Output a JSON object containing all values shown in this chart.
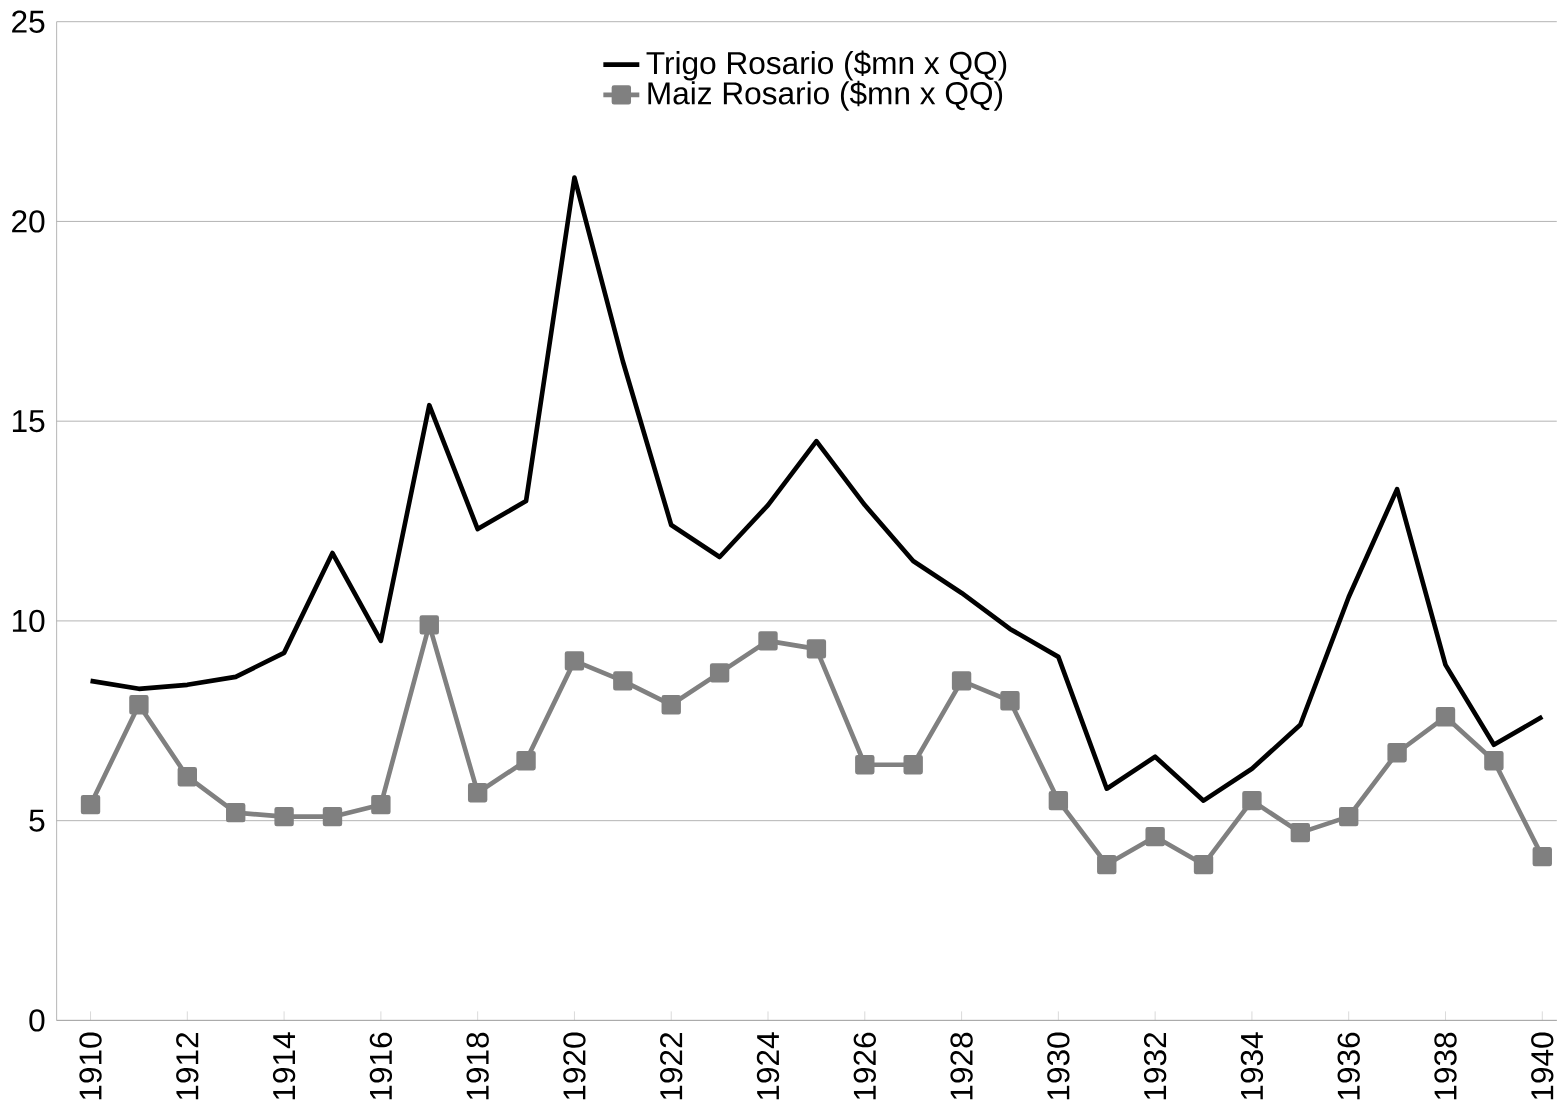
{
  "chart_data": {
    "type": "line",
    "categories": [
      "1910",
      null,
      "1912",
      null,
      "1914",
      null,
      "1916",
      null,
      "1918",
      null,
      "1920",
      null,
      "1922",
      null,
      "1924",
      null,
      "1926",
      null,
      "1928",
      null,
      "1930",
      null,
      "1932",
      null,
      "1934",
      null,
      "1936",
      null,
      "1938",
      null,
      "1940"
    ],
    "series": [
      {
        "name": "Trigo Rosario ($mn x QQ)",
        "color": "#000000",
        "marker": "none",
        "values": [
          8.5,
          8.3,
          8.4,
          8.6,
          9.2,
          11.7,
          9.5,
          15.4,
          12.3,
          13.0,
          21.1,
          16.5,
          12.4,
          11.6,
          12.9,
          14.5,
          12.9,
          11.5,
          10.7,
          9.8,
          9.1,
          5.8,
          6.6,
          5.5,
          6.3,
          7.4,
          10.6,
          13.3,
          8.9,
          6.9,
          7.6
        ]
      },
      {
        "name": "Maiz Rosario ($mn x QQ)",
        "color": "#808080",
        "marker": "square",
        "values": [
          5.4,
          7.9,
          6.1,
          5.2,
          5.1,
          5.1,
          5.4,
          9.9,
          5.7,
          6.5,
          9.0,
          8.5,
          7.9,
          8.7,
          9.5,
          9.3,
          6.4,
          6.4,
          8.5,
          8.0,
          5.5,
          3.9,
          4.6,
          3.9,
          5.5,
          4.7,
          5.1,
          6.7,
          7.6,
          6.5,
          4.1
        ]
      }
    ],
    "ylim": [
      0,
      25
    ],
    "yticks": [
      0,
      5,
      10,
      15,
      20,
      25
    ],
    "grid": "y",
    "legend": "top",
    "line_style": "solid"
  }
}
